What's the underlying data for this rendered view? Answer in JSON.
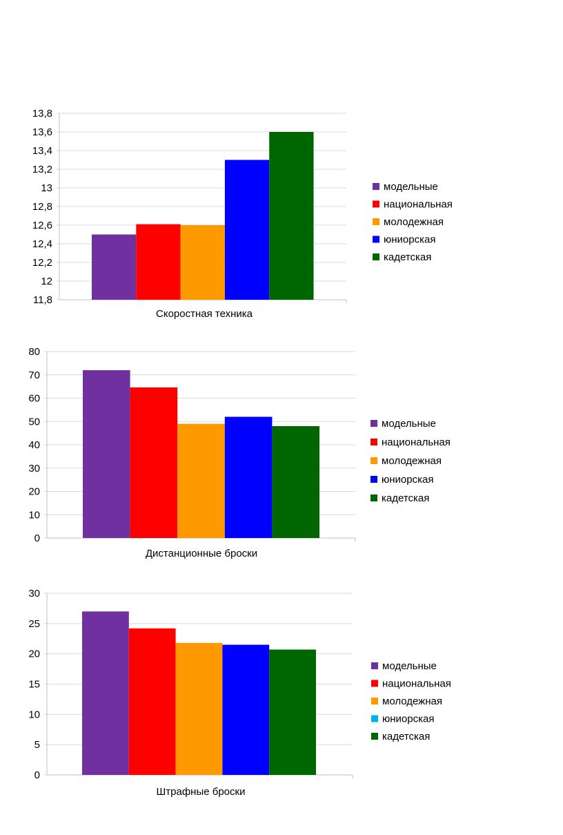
{
  "chart_data": [
    {
      "type": "bar",
      "categories": [
        "Скоростная техника"
      ],
      "xlabel": "",
      "ylabel": "",
      "ylim": [
        11.8,
        13.8
      ],
      "yticks": [
        "11,8",
        "12",
        "12,2",
        "12,4",
        "12,6",
        "12,8",
        "13",
        "13,2",
        "13,4",
        "13,6",
        "13,8"
      ],
      "grid": true,
      "legend_position": "right",
      "series": [
        {
          "name": "модельные",
          "values": [
            12.5
          ],
          "color": "#7030a0"
        },
        {
          "name": "национальная",
          "values": [
            12.61
          ],
          "color": "#ff0000"
        },
        {
          "name": "молодежная",
          "values": [
            12.6
          ],
          "color": "#ff9900"
        },
        {
          "name": "юниорская",
          "values": [
            13.3
          ],
          "color": "#0000ff"
        },
        {
          "name": "кадетская",
          "values": [
            13.6
          ],
          "color": "#006600"
        }
      ]
    },
    {
      "type": "bar",
      "categories": [
        "Дистанционные броски"
      ],
      "xlabel": "",
      "ylabel": "",
      "ylim": [
        0,
        80
      ],
      "yticks": [
        "0",
        "10",
        "20",
        "30",
        "40",
        "50",
        "60",
        "70",
        "80"
      ],
      "grid": true,
      "legend_position": "right",
      "series": [
        {
          "name": "модельные",
          "values": [
            72
          ],
          "color": "#7030a0"
        },
        {
          "name": "национальная",
          "values": [
            64.6
          ],
          "color": "#ff0000"
        },
        {
          "name": "молодежная",
          "values": [
            49
          ],
          "color": "#ff9900"
        },
        {
          "name": "юниорская",
          "values": [
            52
          ],
          "color": "#0000ff"
        },
        {
          "name": "кадетская",
          "values": [
            48
          ],
          "color": "#006600"
        }
      ]
    },
    {
      "type": "bar",
      "categories": [
        "Штрафные броски"
      ],
      "xlabel": "",
      "ylabel": "",
      "ylim": [
        0,
        30
      ],
      "yticks": [
        "0",
        "5",
        "10",
        "15",
        "20",
        "25",
        "30"
      ],
      "grid": true,
      "legend_position": "right",
      "series": [
        {
          "name": "модельные",
          "values": [
            27
          ],
          "color": "#7030a0"
        },
        {
          "name": "национальная",
          "values": [
            24.2
          ],
          "color": "#ff0000"
        },
        {
          "name": "молодежная",
          "values": [
            21.8
          ],
          "color": "#ff9900"
        },
        {
          "name": "юниорская",
          "values": [
            21.5
          ],
          "color": "#0000ff",
          "legend_color": "#00b0f0"
        },
        {
          "name": "кадетская",
          "values": [
            20.7
          ],
          "color": "#006600"
        }
      ]
    }
  ]
}
